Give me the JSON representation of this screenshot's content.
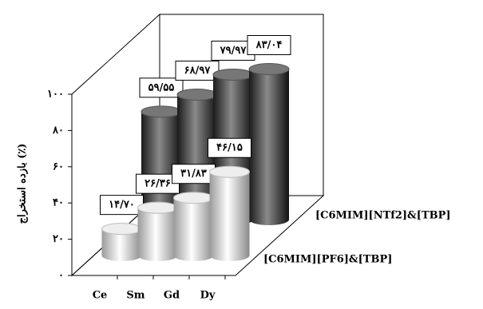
{
  "chart_data": {
    "type": "bar3d",
    "y_label": "بازده استخراج (٪)",
    "categories": [
      "Ce",
      "Sm",
      "Gd",
      "Dy"
    ],
    "series": [
      {
        "name": "[C6MIM][PF6]&[TBP]",
        "color": "#d8d8d8",
        "values": [
          14.7,
          26.36,
          31.83,
          46.15
        ],
        "value_labels": [
          "۱۴/۷۰",
          "۲۶/۳۶",
          "۳۱/۸۳",
          "۴۶/۱۵"
        ]
      },
      {
        "name": "[C6MIM][NTf2]&[TBP]",
        "color": "#333333",
        "values": [
          59.55,
          68.97,
          79.97,
          83.04
        ],
        "value_labels": [
          "۵۹/۵۵",
          "۶۸/۹۷",
          "۷۹/۹۷",
          "۸۳/۰۴"
        ]
      }
    ],
    "ylim": [
      0,
      100
    ],
    "yticks": [
      {
        "value": 0,
        "label": "۰"
      },
      {
        "value": 20,
        "label": "۲۰"
      },
      {
        "value": 40,
        "label": "۴۰"
      },
      {
        "value": 60,
        "label": "۶۰"
      },
      {
        "value": 80,
        "label": "۸۰"
      },
      {
        "value": 100,
        "label": "۱۰۰"
      }
    ]
  }
}
